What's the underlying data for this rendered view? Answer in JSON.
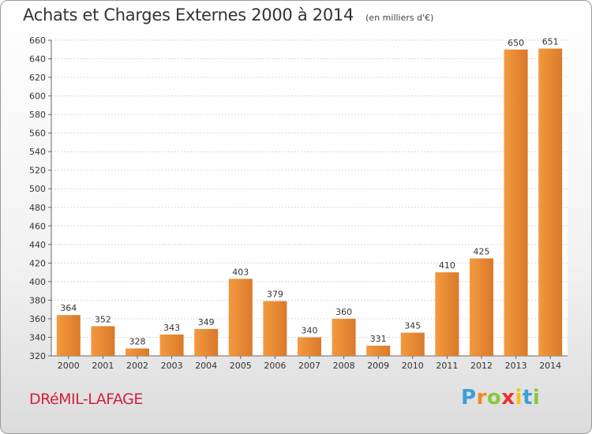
{
  "header": {
    "title": "Achats et Charges Externes 2000 à 2014",
    "unit": "(en milliers d'€)"
  },
  "footer": {
    "commune": "DRéMIL-LAFAGE",
    "logo": [
      "P",
      "r",
      "o",
      "x",
      "i",
      "t",
      "i"
    ]
  },
  "colors": {
    "bar": "#f39a3f",
    "bar_dark": "#d9792a",
    "commune": "#d2213f",
    "logo": [
      "#3aa0d8",
      "#f08a1c",
      "#8dc63f",
      "#e8302e",
      "#f2c21a",
      "#3aa0d8",
      "#8dc63f"
    ]
  },
  "chart_data": {
    "type": "bar",
    "categories": [
      "2000",
      "2001",
      "2002",
      "2003",
      "2004",
      "2005",
      "2006",
      "2007",
      "2008",
      "2009",
      "2010",
      "2011",
      "2012",
      "2013",
      "2014"
    ],
    "values": [
      364,
      352,
      328,
      343,
      349,
      403,
      379,
      340,
      360,
      331,
      345,
      410,
      425,
      650,
      651
    ],
    "ylim": [
      320,
      660
    ],
    "ytick_step": 20,
    "grid": true
  }
}
